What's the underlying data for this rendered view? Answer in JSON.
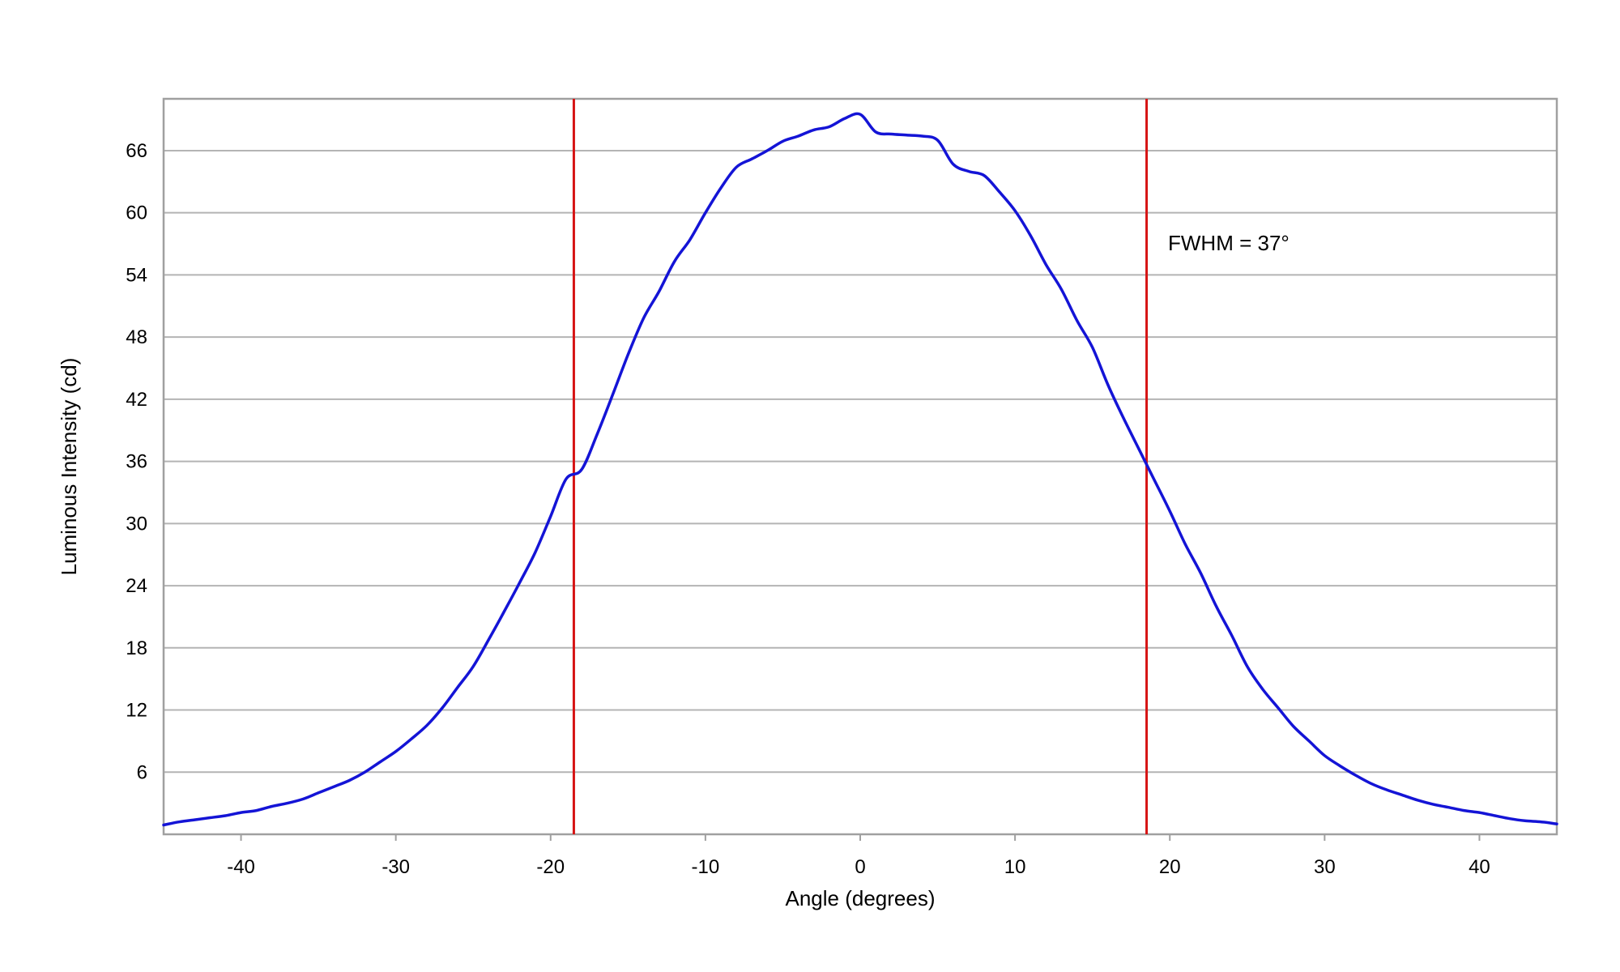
{
  "chart_data": {
    "type": "line",
    "title": "",
    "xlabel": "Angle (degrees)",
    "ylabel": "Luminous Intensity (cd)",
    "xlim": [
      -45,
      45
    ],
    "ylim": [
      0,
      71
    ],
    "xticks": [
      -40,
      -30,
      -20,
      -10,
      0,
      10,
      20,
      30,
      40
    ],
    "yticks": [
      6,
      12,
      18,
      24,
      30,
      36,
      42,
      48,
      54,
      60,
      66
    ],
    "grid": "horizontal",
    "legend": "none",
    "colors": {
      "series": "#1414d6",
      "markers": "#d61414",
      "grid": "#b4b4b4",
      "frame": "#a0a0a0"
    },
    "series": [
      {
        "x": [
          -45,
          -44,
          -43,
          -42,
          -41,
          -40,
          -39,
          -38,
          -37,
          -36,
          -35,
          -34,
          -33,
          -32,
          -31,
          -30,
          -29,
          -28,
          -27,
          -26,
          -25,
          -24,
          -23,
          -22,
          -21,
          -20,
          -19,
          -18,
          -17,
          -16,
          -15,
          -14,
          -13,
          -12,
          -11,
          -10,
          -9,
          -8,
          -7,
          -6,
          -5,
          -4,
          -3,
          -2,
          -1,
          0,
          1,
          2,
          3,
          4,
          5,
          6,
          7,
          8,
          9,
          10,
          11,
          12,
          13,
          14,
          15,
          16,
          17,
          18,
          19,
          20,
          21,
          22,
          23,
          24,
          25,
          26,
          27,
          28,
          29,
          30,
          31,
          32,
          33,
          34,
          35,
          36,
          37,
          38,
          39,
          40,
          41,
          42,
          43,
          44,
          45
        ],
        "y": [
          0.9,
          1.2,
          1.4,
          1.6,
          1.8,
          2.1,
          2.3,
          2.7,
          3.0,
          3.4,
          4.0,
          4.6,
          5.2,
          6.0,
          7.0,
          8.0,
          9.2,
          10.5,
          12.2,
          14.2,
          16.2,
          18.8,
          21.5,
          24.3,
          27.2,
          30.7,
          34.3,
          35.2,
          38.6,
          42.4,
          46.3,
          49.8,
          52.4,
          55.3,
          57.4,
          60.0,
          62.4,
          64.4,
          65.2,
          66.0,
          66.9,
          67.4,
          68.0,
          68.3,
          69.1,
          69.5,
          67.8,
          67.6,
          67.5,
          67.4,
          67.0,
          64.7,
          64.0,
          63.6,
          62.0,
          60.2,
          57.8,
          55.0,
          52.6,
          49.6,
          47.0,
          43.4,
          40.2,
          37.2,
          34.2,
          31.2,
          28.0,
          25.2,
          22.0,
          19.2,
          16.2,
          14.0,
          12.2,
          10.4,
          9.0,
          7.6,
          6.6,
          5.7,
          4.9,
          4.3,
          3.8,
          3.3,
          2.9,
          2.6,
          2.3,
          2.1,
          1.8,
          1.5,
          1.3,
          1.2,
          1.0
        ]
      }
    ],
    "vlines": [
      -18.5,
      18.5
    ],
    "annotation": "FWHM = 37°"
  }
}
